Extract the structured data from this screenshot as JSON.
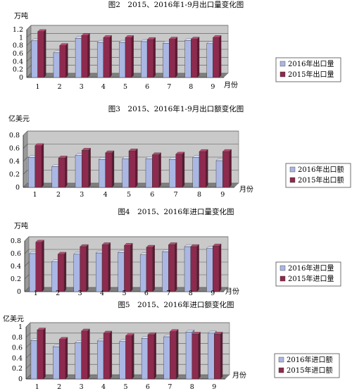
{
  "colors": {
    "y2016": "#aab7e4",
    "y2015": "#8d2a4e",
    "plot_bg": "#c9c9c9",
    "wall": "#9a9a9a"
  },
  "chart_data": [
    {
      "type": "bar",
      "title": "图2　2015、2016年1-9月出口量变化图",
      "ylabel": "万吨",
      "xlabel": "月份",
      "categories": [
        "1",
        "2",
        "3",
        "4",
        "5",
        "6",
        "7",
        "8",
        "9"
      ],
      "ylim": [
        0,
        1.2
      ],
      "yticks": [
        "0",
        "0.2",
        "0.4",
        "0.6",
        "0.8",
        "1",
        "1.2"
      ],
      "series": [
        {
          "name": "2016年出口量",
          "values": [
            0.92,
            0.62,
            0.98,
            0.88,
            0.88,
            0.9,
            0.86,
            0.93,
            0.85
          ]
        },
        {
          "name": "2015年出口量",
          "values": [
            1.15,
            0.8,
            1.05,
            1.0,
            1.0,
            0.95,
            0.96,
            0.96,
            1.0
          ]
        }
      ],
      "legend": "right",
      "grid": true
    },
    {
      "type": "bar",
      "title": "图3　2015、2016年1-9月出口额变化图",
      "ylabel": "亿美元",
      "xlabel": "月份",
      "categories": [
        "1",
        "2",
        "3",
        "4",
        "5",
        "6",
        "7",
        "8",
        "9"
      ],
      "ylim": [
        0,
        0.8
      ],
      "yticks": [
        "0",
        "0.2",
        "0.4",
        "0.6",
        "0.8"
      ],
      "series": [
        {
          "name": "2016年出口额",
          "values": [
            0.46,
            0.32,
            0.49,
            0.43,
            0.44,
            0.44,
            0.43,
            0.46,
            0.41
          ]
        },
        {
          "name": "2015年出口额",
          "values": [
            0.64,
            0.45,
            0.57,
            0.53,
            0.56,
            0.5,
            0.51,
            0.55,
            0.55
          ]
        }
      ],
      "legend": "right",
      "grid": true
    },
    {
      "type": "bar",
      "title": "图4　2015、2016年进口量变化图",
      "ylabel": "万吨",
      "xlabel": "月份",
      "categories": [
        "1",
        "2",
        "3",
        "4",
        "5",
        "6",
        "7",
        "8",
        "9"
      ],
      "ylim": [
        0,
        0.8
      ],
      "yticks": [
        "0",
        "0.2",
        "0.4",
        "0.6",
        "0.8"
      ],
      "series": [
        {
          "name": "2016年进口量",
          "values": [
            0.6,
            0.47,
            0.59,
            0.61,
            0.62,
            0.58,
            0.63,
            0.71,
            0.68
          ]
        },
        {
          "name": "2015年进口量",
          "values": [
            0.78,
            0.59,
            0.71,
            0.74,
            0.73,
            0.7,
            0.74,
            0.71,
            0.72
          ]
        }
      ],
      "legend": "right",
      "grid": true
    },
    {
      "type": "bar",
      "title": "图5　2015、2016年进口额变化图",
      "ylabel": "亿美元",
      "xlabel": "月份",
      "categories": [
        "1",
        "2",
        "3",
        "4",
        "5",
        "6",
        "7",
        "8",
        "9"
      ],
      "ylim": [
        0,
        1
      ],
      "yticks": [
        "0",
        "0.2",
        "0.4",
        "0.6",
        "0.8",
        "1"
      ],
      "series": [
        {
          "name": "2016年进口额",
          "values": [
            0.74,
            0.62,
            0.7,
            0.73,
            0.72,
            0.78,
            0.81,
            0.9,
            0.88
          ]
        },
        {
          "name": "2015年进口额",
          "values": [
            0.94,
            0.76,
            0.92,
            0.88,
            0.83,
            0.85,
            0.91,
            0.86,
            0.86
          ]
        }
      ],
      "legend": "right",
      "grid": true
    }
  ]
}
